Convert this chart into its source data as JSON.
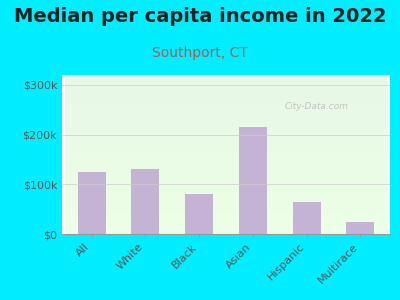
{
  "title": "Median per capita income in 2022",
  "subtitle": "Southport, CT",
  "categories": [
    "All",
    "White",
    "Black",
    "Asian",
    "Hispanic",
    "Multirace"
  ],
  "values": [
    125000,
    130000,
    80000,
    215000,
    65000,
    25000
  ],
  "bar_color": "#c5b3d5",
  "background_outer": "#00eeff",
  "yticks": [
    0,
    100000,
    200000,
    300000
  ],
  "ytick_labels": [
    "$0",
    "$100k",
    "$200k",
    "$300k"
  ],
  "ylim": [
    0,
    320000
  ],
  "title_fontsize": 14,
  "subtitle_fontsize": 10,
  "subtitle_color": "#9e6060",
  "title_color": "#222222",
  "tick_color": "#555555",
  "watermark_text": "City-Data.com",
  "watermark_color": "#bbbbbb"
}
